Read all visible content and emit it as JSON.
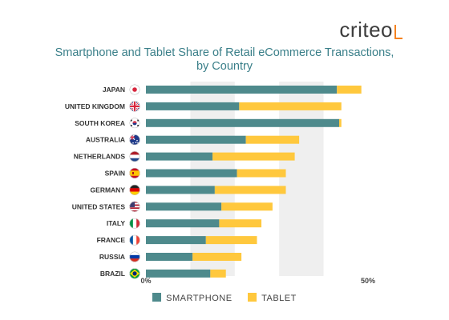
{
  "logo": {
    "text": "criteo"
  },
  "title": {
    "line1": "Smartphone and Tablet Share of Retail eCommerce Transactions,",
    "line2": "by Country"
  },
  "colors": {
    "smartphone": "#4e8a8c",
    "tablet": "#ffc83d",
    "band": "#efefef"
  },
  "legend": {
    "smartphone_label": "SMARTPHONE",
    "tablet_label": "TABLET"
  },
  "chart_data": {
    "type": "bar",
    "orientation": "horizontal",
    "stacked": true,
    "categories": [
      "JAPAN",
      "UNITED KINGDOM",
      "SOUTH KOREA",
      "AUSTRALIA",
      "NETHERLANDS",
      "SPAIN",
      "GERMANY",
      "UNITED STATES",
      "ITALY",
      "FRANCE",
      "RUSSIA",
      "BRAZIL"
    ],
    "flag_icons": [
      "japan-flag-icon",
      "uk-flag-icon",
      "south-korea-flag-icon",
      "australia-flag-icon",
      "netherlands-flag-icon",
      "spain-flag-icon",
      "germany-flag-icon",
      "usa-flag-icon",
      "italy-flag-icon",
      "france-flag-icon",
      "russia-flag-icon",
      "brazil-flag-icon"
    ],
    "series": [
      {
        "name": "SMARTPHONE",
        "values": [
          43,
          21,
          43.5,
          22.5,
          15,
          20.5,
          15.5,
          17,
          16.5,
          13.5,
          10.5,
          14.5
        ]
      },
      {
        "name": "TABLET",
        "values": [
          5.5,
          23,
          0.5,
          12,
          18.5,
          11,
          16,
          11.5,
          9.5,
          11.5,
          11,
          3.5
        ]
      }
    ],
    "x_ticks": [
      "0%",
      "50%"
    ],
    "xlim": [
      0,
      50
    ],
    "background_bands": true,
    "legend_position": "bottom"
  }
}
